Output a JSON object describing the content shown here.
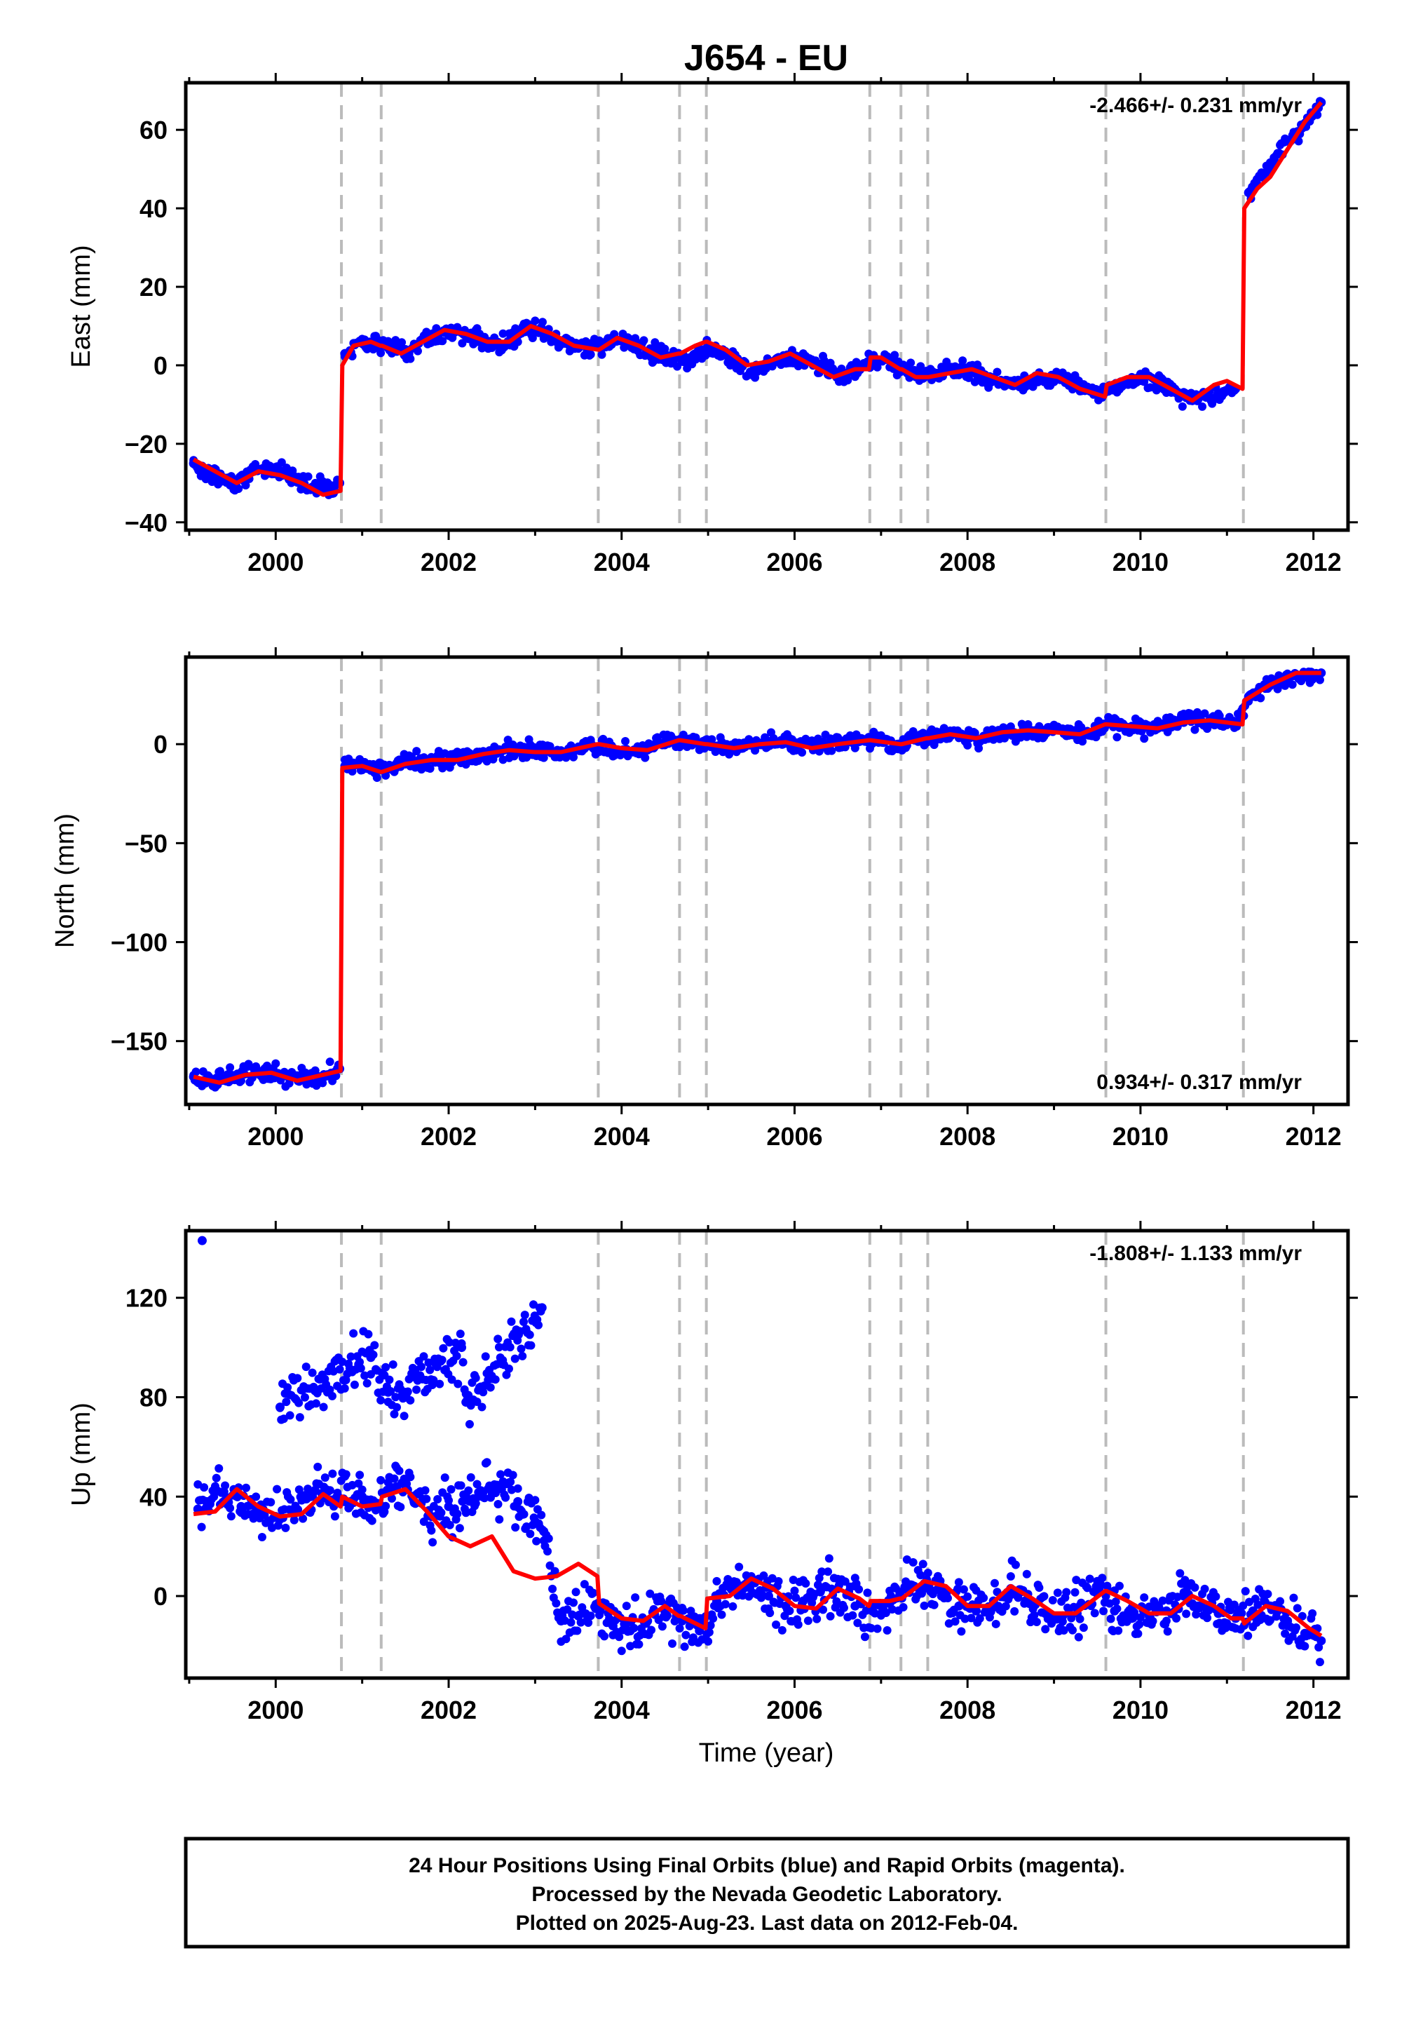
{
  "title": "J654 - EU",
  "colors": {
    "data": "#0000ff",
    "fit": "#ff0000",
    "break": "#bbbbbb",
    "axis": "#000000"
  },
  "xlabel": "Time (year)",
  "x_ticks": [
    "2000",
    "2002",
    "2004",
    "2006",
    "2008",
    "2010",
    "2012"
  ],
  "chart_data": [
    {
      "type": "scatter",
      "component": "east",
      "ylabel": "East (mm)",
      "rate_text": "-2.466+/- 0.231 mm/yr",
      "rate_position": "top-right",
      "xlim": [
        1998.96,
        2012.4
      ],
      "ylim": [
        -42,
        72
      ],
      "yticks": [
        -40,
        -20,
        0,
        20,
        40,
        60
      ],
      "ytick_labels": [
        "−40",
        "−20",
        "0",
        "20",
        "40",
        "60"
      ],
      "break_lines": [
        2000.76,
        2001.22,
        2003.73,
        2004.67,
        2004.98,
        2006.87,
        2007.23,
        2007.54,
        2009.6,
        2011.19
      ],
      "series": [
        {
          "kind": "points",
          "x": [
            1999.05,
            1999.25,
            1999.5,
            1999.75,
            2000.0,
            2000.25,
            2000.5,
            2000.74,
            2000.8,
            2001.0,
            2001.2,
            2001.5,
            2001.8,
            2002.0,
            2002.3,
            2002.6,
            2002.9,
            2003.1,
            2003.4,
            2003.6,
            2003.9,
            2004.1,
            2004.4,
            2004.7,
            2005.0,
            2005.2,
            2005.5,
            2005.8,
            2006.0,
            2006.3,
            2006.6,
            2006.9,
            2007.2,
            2007.5,
            2007.8,
            2008.0,
            2008.3,
            2008.6,
            2008.9,
            2009.2,
            2009.5,
            2009.8,
            2010.0,
            2010.3,
            2010.6,
            2010.9,
            2011.1,
            2011.25,
            2011.4,
            2011.6,
            2011.8,
            2012.0,
            2012.09
          ],
          "y": [
            -25,
            -28,
            -30,
            -27,
            -26,
            -29,
            -31,
            -30,
            3,
            6,
            5,
            4,
            7,
            9,
            7,
            5,
            9,
            8,
            5,
            5,
            6,
            6,
            3,
            1,
            5,
            3,
            -2,
            1,
            2,
            0,
            -3,
            2,
            0,
            -3,
            -1,
            -2,
            -4,
            -5,
            -3,
            -4,
            -7,
            -5,
            -3,
            -5,
            -9,
            -7,
            -6,
            44,
            48,
            54,
            59,
            64,
            67
          ]
        },
        {
          "kind": "fit",
          "x": [
            1999.05,
            1999.3,
            1999.55,
            1999.8,
            2000.05,
            2000.3,
            2000.55,
            2000.75,
            2000.77,
            2000.9,
            2001.1,
            2001.21,
            2001.23,
            2001.45,
            2001.7,
            2001.95,
            2002.2,
            2002.45,
            2002.7,
            2002.95,
            2003.2,
            2003.45,
            2003.72,
            2003.74,
            2003.95,
            2004.2,
            2004.45,
            2004.66,
            2004.68,
            2004.85,
            2004.97,
            2004.99,
            2005.2,
            2005.45,
            2005.7,
            2005.95,
            2006.2,
            2006.45,
            2006.7,
            2006.86,
            2006.88,
            2007.0,
            2007.22,
            2007.24,
            2007.4,
            2007.53,
            2007.55,
            2007.8,
            2008.05,
            2008.3,
            2008.55,
            2008.8,
            2009.05,
            2009.3,
            2009.59,
            2009.61,
            2009.85,
            2010.1,
            2010.35,
            2010.6,
            2010.85,
            2011.0,
            2011.18,
            2011.2,
            2011.35,
            2011.5,
            2011.7,
            2011.9,
            2012.09
          ],
          "y": [
            -24,
            -27,
            -30,
            -27,
            -28,
            -30,
            -33,
            -32,
            0,
            5,
            6,
            5,
            5,
            3,
            6,
            9,
            8,
            6,
            6,
            10,
            8,
            5,
            4,
            4,
            7,
            5,
            2,
            3,
            3,
            5,
            6,
            6,
            4,
            0,
            1,
            3,
            0,
            -3,
            -1,
            -1,
            2,
            2,
            -1,
            -1,
            -3,
            -3,
            -3,
            -2,
            -1,
            -3,
            -5,
            -2,
            -3,
            -6,
            -8,
            -5,
            -3,
            -3,
            -6,
            -9,
            -5,
            -4,
            -6,
            40,
            45,
            48,
            55,
            62,
            67
          ]
        }
      ]
    },
    {
      "type": "scatter",
      "component": "north",
      "ylabel": "North (mm)",
      "rate_text": "0.934+/- 0.317 mm/yr",
      "rate_position": "bottom-right",
      "xlim": [
        1998.96,
        2012.4
      ],
      "ylim": [
        -182,
        44
      ],
      "yticks": [
        -150,
        -100,
        -50,
        0
      ],
      "ytick_labels": [
        "−150",
        "−100",
        "−50",
        "0"
      ],
      "break_lines": [
        2000.76,
        2001.22,
        2003.73,
        2004.67,
        2004.98,
        2006.87,
        2007.23,
        2007.54,
        2009.6,
        2011.19
      ],
      "series": [
        {
          "kind": "points",
          "x": [
            1999.05,
            1999.3,
            1999.6,
            1999.9,
            2000.2,
            2000.5,
            2000.74,
            2000.8,
            2001.0,
            2001.2,
            2001.5,
            2001.8,
            2002.1,
            2002.4,
            2002.7,
            2003.0,
            2003.3,
            2003.6,
            2003.9,
            2004.2,
            2004.5,
            2004.8,
            2005.1,
            2005.4,
            2005.7,
            2006.0,
            2006.3,
            2006.6,
            2006.9,
            2007.2,
            2007.5,
            2007.8,
            2008.1,
            2008.4,
            2008.7,
            2009.0,
            2009.3,
            2009.6,
            2009.9,
            2010.2,
            2010.5,
            2010.8,
            2011.1,
            2011.25,
            2011.5,
            2011.8,
            2012.09
          ],
          "y": [
            -168,
            -170,
            -166,
            -165,
            -168,
            -168,
            -164,
            -11,
            -10,
            -13,
            -10,
            -8,
            -7,
            -6,
            -3,
            -3,
            -4,
            -1,
            -2,
            -4,
            1,
            1,
            -1,
            -2,
            1,
            0,
            -1,
            2,
            2,
            0,
            4,
            5,
            3,
            6,
            6,
            7,
            5,
            10,
            9,
            8,
            11,
            12,
            10,
            24,
            30,
            35,
            36
          ]
        },
        {
          "kind": "fit",
          "x": [
            1999.05,
            1999.35,
            1999.65,
            1999.95,
            2000.25,
            2000.55,
            2000.75,
            2000.77,
            2001.0,
            2001.21,
            2001.23,
            2001.5,
            2001.8,
            2002.1,
            2002.4,
            2002.7,
            2003.0,
            2003.3,
            2003.72,
            2003.74,
            2004.0,
            2004.3,
            2004.66,
            2004.68,
            2004.97,
            2004.99,
            2005.3,
            2005.6,
            2005.9,
            2006.2,
            2006.5,
            2006.86,
            2006.88,
            2007.22,
            2007.24,
            2007.53,
            2007.55,
            2007.8,
            2008.1,
            2008.4,
            2008.7,
            2009.0,
            2009.3,
            2009.59,
            2009.61,
            2009.9,
            2010.2,
            2010.5,
            2010.8,
            2011.18,
            2011.2,
            2011.5,
            2011.8,
            2012.09
          ],
          "y": [
            -168,
            -171,
            -167,
            -166,
            -170,
            -167,
            -165,
            -12,
            -11,
            -14,
            -14,
            -10,
            -8,
            -8,
            -5,
            -3,
            -4,
            -4,
            0,
            0,
            -2,
            -3,
            2,
            2,
            0,
            0,
            -2,
            0,
            1,
            -2,
            0,
            2,
            2,
            0,
            0,
            3,
            3,
            5,
            3,
            6,
            7,
            6,
            5,
            10,
            10,
            9,
            8,
            11,
            12,
            10,
            22,
            30,
            36,
            36
          ]
        }
      ]
    },
    {
      "type": "scatter",
      "component": "up",
      "ylabel": "Up (mm)",
      "rate_text": "-1.808+/- 1.133 mm/yr",
      "rate_position": "top-right",
      "xlim": [
        1998.96,
        2012.4
      ],
      "ylim": [
        -33,
        147
      ],
      "yticks": [
        0,
        40,
        80,
        120
      ],
      "ytick_labels": [
        "0",
        "40",
        "80",
        "120"
      ],
      "break_lines": [
        2000.76,
        2001.22,
        2003.73,
        2004.67,
        2004.98,
        2006.87,
        2007.23,
        2007.54,
        2009.6,
        2011.19
      ],
      "series": [
        {
          "kind": "points",
          "x": [
            1999.1,
            1999.2,
            1999.4,
            1999.6,
            1999.8,
            2000.0,
            2000.2,
            2000.4,
            2000.6,
            2000.8,
            2001.0,
            2001.2,
            2001.4,
            2001.6,
            2001.8,
            2002.0,
            2002.2,
            2002.4,
            2002.6,
            2002.8,
            2003.0,
            2003.1,
            2003.3,
            2003.5,
            2003.7,
            2003.9,
            2004.1,
            2004.3,
            2004.5,
            2004.7,
            2004.9,
            2005.1,
            2005.3,
            2005.5,
            2005.7,
            2005.9,
            2006.1,
            2006.3,
            2006.5,
            2006.7,
            2006.9,
            2007.1,
            2007.3,
            2007.5,
            2007.7,
            2007.9,
            2008.1,
            2008.3,
            2008.5,
            2008.7,
            2008.9,
            2009.1,
            2009.3,
            2009.5,
            2009.7,
            2009.9,
            2010.1,
            2010.3,
            2010.5,
            2010.7,
            2010.9,
            2011.1,
            2011.3,
            2011.5,
            2011.7,
            2011.9,
            2012.09,
            1999.15,
            2000.05,
            2001.1,
            2001.3,
            2001.5,
            2002.15,
            2002.2,
            2003.08
          ],
          "y": [
            35,
            38,
            42,
            36,
            33,
            32,
            34,
            40,
            42,
            38,
            40,
            37,
            44,
            38,
            32,
            36,
            40,
            42,
            44,
            38,
            30,
            26,
            -10,
            -8,
            -5,
            -12,
            -14,
            -10,
            -6,
            -10,
            -14,
            -2,
            2,
            5,
            0,
            -4,
            -2,
            2,
            3,
            -4,
            -6,
            -3,
            3,
            5,
            0,
            -4,
            -6,
            -2,
            3,
            -2,
            -7,
            -8,
            -4,
            1,
            -6,
            -9,
            -8,
            -6,
            0,
            -4,
            -7,
            -9,
            -6,
            -4,
            -10,
            -15,
            -18,
            143,
            76,
            96,
            82,
            80,
            100,
            78,
            116
          ]
        },
        {
          "kind": "fit",
          "x": [
            1999.05,
            1999.3,
            1999.55,
            1999.8,
            2000.05,
            2000.3,
            2000.55,
            2000.75,
            2000.77,
            2001.0,
            2001.21,
            2001.23,
            2001.5,
            2001.75,
            2002.0,
            2002.25,
            2002.5,
            2002.75,
            2003.0,
            2003.25,
            2003.5,
            2003.72,
            2003.74,
            2004.0,
            2004.25,
            2004.5,
            2004.66,
            2004.68,
            2004.97,
            2004.99,
            2005.25,
            2005.5,
            2005.75,
            2006.0,
            2006.25,
            2006.5,
            2006.75,
            2006.86,
            2006.88,
            2007.1,
            2007.22,
            2007.24,
            2007.5,
            2007.75,
            2008.0,
            2008.25,
            2008.5,
            2008.75,
            2009.0,
            2009.25,
            2009.59,
            2009.61,
            2009.85,
            2010.1,
            2010.35,
            2010.6,
            2010.85,
            2011.05,
            2011.18,
            2011.2,
            2011.45,
            2011.7,
            2011.95,
            2012.09
          ],
          "y": [
            33,
            34,
            43,
            36,
            32,
            33,
            41,
            36,
            40,
            36,
            37,
            40,
            43,
            34,
            24,
            20,
            24,
            10,
            7,
            8,
            13,
            8,
            -3,
            -9,
            -10,
            -4,
            -8,
            -8,
            -13,
            -1,
            0,
            7,
            3,
            -4,
            -5,
            3,
            -1,
            -4,
            -2,
            -2,
            -1,
            -1,
            6,
            4,
            -4,
            -4,
            4,
            -1,
            -7,
            -7,
            2,
            2,
            -2,
            -7,
            -7,
            0,
            -4,
            -9,
            -9,
            -11,
            -4,
            -6,
            -13,
            -16
          ]
        }
      ]
    }
  ],
  "footer": {
    "line1": "24 Hour Positions Using Final Orbits (blue) and Rapid Orbits (magenta).",
    "line2": "Processed by the Nevada Geodetic Laboratory.",
    "line3": "Plotted on 2025-Aug-23. Last data on 2012-Feb-04."
  }
}
